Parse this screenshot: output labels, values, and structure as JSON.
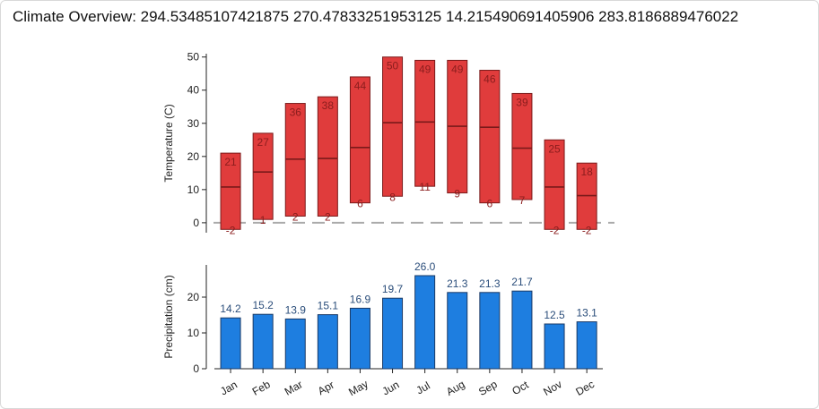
{
  "title": "Climate Overview: 294.53485107421875 270.47833251953125 14.215490691405906 283.8186889476022",
  "chart_data": [
    {
      "type": "bar",
      "subtype": "floating-range",
      "categories": [
        "Jan",
        "Feb",
        "Mar",
        "Apr",
        "May",
        "Jun",
        "Jul",
        "Aug",
        "Sep",
        "Oct",
        "Nov",
        "Dec"
      ],
      "ylabel": "Temperature (C)",
      "ylim": [
        -3,
        51
      ],
      "yticks": [
        "0",
        "10",
        "20",
        "30",
        "40",
        "50"
      ],
      "min": [
        -2,
        1,
        2,
        2,
        6,
        8,
        11,
        9,
        6,
        7,
        -2,
        -2
      ],
      "max": [
        21,
        27,
        36,
        38,
        44,
        50,
        49,
        49,
        46,
        39,
        25,
        18
      ],
      "mean": [
        10.8,
        15.3,
        19.2,
        19.4,
        22.7,
        30.2,
        30.4,
        29.1,
        28.8,
        22.5,
        10.8,
        8.2
      ],
      "min_labels": [
        "-2",
        "1",
        "2",
        "2",
        "6",
        "8",
        "11",
        "9",
        "6",
        "7",
        "-2",
        "-2"
      ],
      "max_labels": [
        "21",
        "27",
        "36",
        "38",
        "44",
        "50",
        "49",
        "49",
        "46",
        "39",
        "25",
        "18"
      ],
      "reference_line": 0,
      "color": "#e03c3c",
      "edge_color": "#7a1a1a"
    },
    {
      "type": "bar",
      "categories": [
        "Jan",
        "Feb",
        "Mar",
        "Apr",
        "May",
        "Jun",
        "Jul",
        "Aug",
        "Sep",
        "Oct",
        "Nov",
        "Dec"
      ],
      "ylabel": "Precipitation (cm)",
      "ylim": [
        0,
        28
      ],
      "yticks": [
        "0",
        "10",
        "20"
      ],
      "values": [
        14.2,
        15.2,
        13.9,
        15.1,
        16.9,
        19.7,
        26.0,
        21.3,
        21.3,
        21.7,
        12.5,
        13.1
      ],
      "value_labels": [
        "14.2",
        "15.2",
        "13.9",
        "15.1",
        "16.9",
        "19.7",
        "26.0",
        "21.3",
        "21.3",
        "21.7",
        "12.5",
        "13.1"
      ],
      "color": "#1e7ee0",
      "edge_color": "#1a3a66"
    }
  ]
}
